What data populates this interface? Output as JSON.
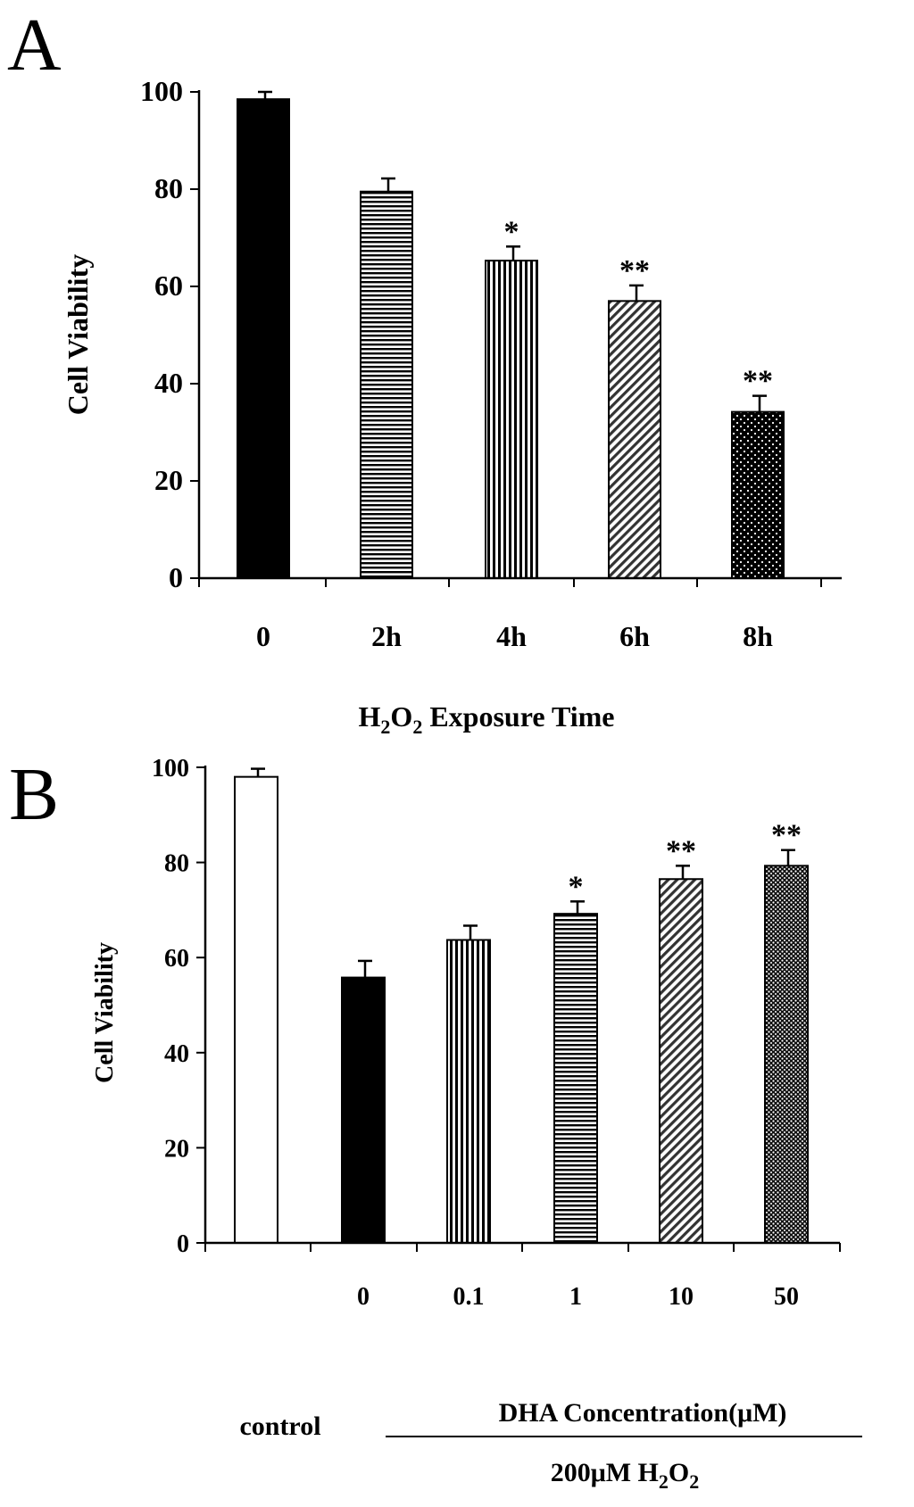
{
  "chart_data": [
    {
      "panel_label": "A",
      "type": "bar",
      "ylabel": "Cell Viability",
      "xlabel": {
        "main": "H",
        "sub1": "2",
        "mid": "O",
        "sub2": "2",
        "rest": " Exposure Time"
      },
      "ylim": [
        0,
        100
      ],
      "yticks": [
        "0",
        "20",
        "40",
        "60",
        "80",
        "100"
      ],
      "categories": [
        "0",
        "2h",
        "4h",
        "6h",
        "8h"
      ],
      "values": [
        98.5,
        79.5,
        65.3,
        57.0,
        34.2
      ],
      "errors": [
        1.5,
        2.7,
        2.9,
        3.2,
        3.3
      ],
      "significance": [
        "",
        "",
        "*",
        "**",
        "**"
      ],
      "patterns": [
        "solid",
        "hlines",
        "vlines",
        "diag",
        "dots-dark"
      ]
    },
    {
      "panel_label": "B",
      "type": "bar",
      "ylabel": "Cell Viability",
      "ylim": [
        0,
        100
      ],
      "yticks": [
        "0",
        "20",
        "40",
        "60",
        "80",
        "100"
      ],
      "categories": [
        "",
        "0",
        "0.1",
        "1",
        "10",
        "50"
      ],
      "values": [
        98.0,
        55.8,
        63.7,
        69.2,
        76.5,
        79.3
      ],
      "errors": [
        1.7,
        3.5,
        3.0,
        2.6,
        2.8,
        3.3
      ],
      "significance": [
        "",
        "",
        "",
        "*",
        "**",
        "**"
      ],
      "patterns": [
        "white",
        "solid",
        "vlines",
        "hlines",
        "diag",
        "dots-light"
      ],
      "group_label_control": "control",
      "group_label_dha": "DHA Concentration(μM)",
      "group_label_treatment": {
        "main": "200μM H",
        "sub1": "2",
        "mid": "O",
        "sub2": "2"
      }
    }
  ]
}
